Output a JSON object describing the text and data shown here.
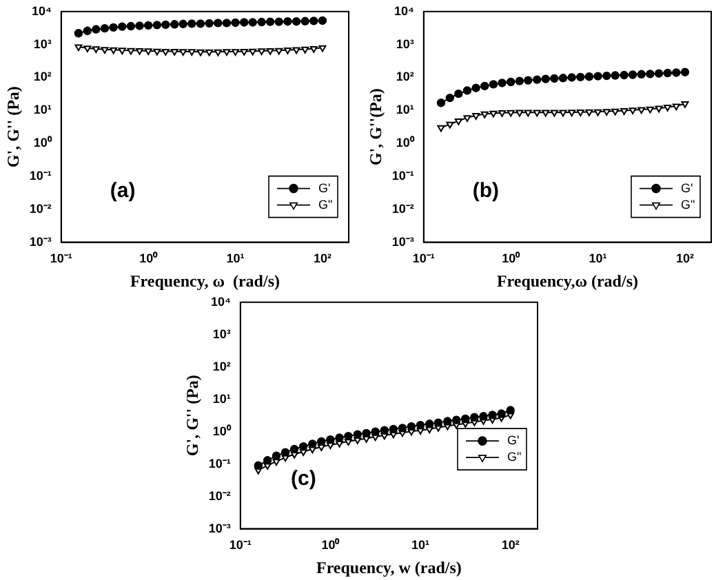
{
  "chart_data": [
    {
      "type": "line",
      "xlabel": "Frequency, ω  (rad/s)",
      "ylabel": "G', G'' (Pa)",
      "annotations": [
        "(a)"
      ],
      "log": "xy",
      "legend": "bottom right",
      "grid": false,
      "line_style": "solid",
      "xlim": [
        0.1,
        200
      ],
      "xticks": [
        {
          "value": 0.1,
          "label": "10⁻¹"
        },
        {
          "value": 1,
          "label": "10⁰"
        },
        {
          "value": 10,
          "label": "10¹"
        },
        {
          "value": 100,
          "label": "10²"
        }
      ],
      "ylim": [
        0.001,
        10000
      ],
      "yticks": [
        {
          "value": 0.001,
          "label": "10⁻³"
        },
        {
          "value": 0.01,
          "label": "10⁻²"
        },
        {
          "value": 0.1,
          "label": "10⁻¹"
        },
        {
          "value": 1,
          "label": "10⁰"
        },
        {
          "value": 10,
          "label": "10¹"
        },
        {
          "value": 100,
          "label": "10²"
        },
        {
          "value": 1000,
          "label": "10³"
        },
        {
          "value": 10000,
          "label": "10⁴"
        }
      ],
      "x": [
        0.158,
        0.2,
        0.251,
        0.316,
        0.398,
        0.501,
        0.631,
        0.794,
        1,
        1.26,
        1.58,
        2,
        2.51,
        3.16,
        3.98,
        5.01,
        6.31,
        7.94,
        10,
        12.6,
        15.8,
        20,
        25.1,
        31.6,
        39.8,
        50.1,
        63.1,
        79.4,
        100
      ],
      "series": [
        {
          "name": "G'",
          "color": "#000000",
          "marker": "circle",
          "values": [
            2200,
            2600,
            2900,
            3100,
            3300,
            3500,
            3600,
            3700,
            3800,
            3900,
            4000,
            4100,
            4200,
            4300,
            4300,
            4400,
            4500,
            4500,
            4600,
            4700,
            4700,
            4800,
            4900,
            4900,
            5000,
            5000,
            5100,
            5200,
            5300
          ]
        },
        {
          "name": "G\"",
          "color": "#000000",
          "marker": "triangle",
          "values": [
            850,
            780,
            740,
            710,
            690,
            670,
            660,
            650,
            640,
            630,
            620,
            620,
            610,
            610,
            600,
            600,
            600,
            610,
            610,
            620,
            630,
            640,
            650,
            660,
            680,
            700,
            720,
            750,
            800
          ]
        }
      ]
    },
    {
      "type": "line",
      "xlabel": "Frequency,ω (rad/s)",
      "ylabel": "G', G''(Pa)",
      "annotations": [
        "(b)"
      ],
      "log": "xy",
      "legend": "bottom right",
      "grid": false,
      "line_style": "solid",
      "xlim": [
        0.1,
        200
      ],
      "xticks": [
        {
          "value": 0.1,
          "label": "10⁻¹"
        },
        {
          "value": 1,
          "label": "10⁰"
        },
        {
          "value": 10,
          "label": "10¹"
        },
        {
          "value": 100,
          "label": "10²"
        }
      ],
      "ylim": [
        0.001,
        10000
      ],
      "yticks": [
        {
          "value": 0.001,
          "label": "10⁻³"
        },
        {
          "value": 0.01,
          "label": "10⁻²"
        },
        {
          "value": 0.1,
          "label": "10⁻¹"
        },
        {
          "value": 1,
          "label": "10⁰"
        },
        {
          "value": 10,
          "label": "10¹"
        },
        {
          "value": 100,
          "label": "10²"
        },
        {
          "value": 1000,
          "label": "10³"
        },
        {
          "value": 10000,
          "label": "10⁴"
        }
      ],
      "x": [
        0.158,
        0.2,
        0.251,
        0.316,
        0.398,
        0.501,
        0.631,
        0.794,
        1,
        1.26,
        1.58,
        2,
        2.51,
        3.16,
        3.98,
        5.01,
        6.31,
        7.94,
        10,
        12.6,
        15.8,
        20,
        25.1,
        31.6,
        39.8,
        50.1,
        63.1,
        79.4,
        100
      ],
      "series": [
        {
          "name": "G'",
          "color": "#000000",
          "marker": "circle",
          "values": [
            17,
            24,
            32,
            40,
            48,
            55,
            62,
            68,
            73,
            78,
            82,
            86,
            90,
            93,
            96,
            100,
            103,
            106,
            109,
            112,
            115,
            118,
            121,
            125,
            128,
            132,
            136,
            140,
            145
          ]
        },
        {
          "name": "G\"",
          "color": "#000000",
          "marker": "triangle",
          "values": [
            3,
            3.8,
            4.8,
            6,
            7,
            7.8,
            8.2,
            8.5,
            8.6,
            8.7,
            8.7,
            8.7,
            8.7,
            8.7,
            8.7,
            8.8,
            8.9,
            9,
            9.1,
            9.3,
            9.5,
            9.8,
            10.2,
            10.6,
            11,
            11.6,
            12.5,
            13.5,
            16
          ]
        }
      ]
    },
    {
      "type": "line",
      "xlabel": "Frequency, w (rad/s)",
      "ylabel": "G', G'' (Pa)",
      "annotations": [
        "(c)"
      ],
      "log": "xy",
      "legend": "right",
      "grid": false,
      "line_style": "solid",
      "xlim": [
        0.1,
        200
      ],
      "xticks": [
        {
          "value": 0.1,
          "label": "10⁻¹"
        },
        {
          "value": 1,
          "label": "10⁰"
        },
        {
          "value": 10,
          "label": "10¹"
        },
        {
          "value": 100,
          "label": "10²"
        }
      ],
      "ylim": [
        0.001,
        10000
      ],
      "yticks": [
        {
          "value": 0.001,
          "label": "10⁻³"
        },
        {
          "value": 0.01,
          "label": "10⁻²"
        },
        {
          "value": 0.1,
          "label": "10⁻¹"
        },
        {
          "value": 1,
          "label": "10⁰"
        },
        {
          "value": 10,
          "label": "10¹"
        },
        {
          "value": 100,
          "label": "10²"
        },
        {
          "value": 1000,
          "label": "10³"
        },
        {
          "value": 10000,
          "label": "10⁴"
        }
      ],
      "x": [
        0.158,
        0.2,
        0.251,
        0.316,
        0.398,
        0.501,
        0.631,
        0.794,
        1,
        1.26,
        1.58,
        2,
        2.51,
        3.16,
        3.98,
        5.01,
        6.31,
        7.94,
        10,
        12.6,
        15.8,
        20,
        25.1,
        31.6,
        39.8,
        50.1,
        63.1,
        79.4,
        100
      ],
      "series": [
        {
          "name": "G'",
          "color": "#000000",
          "marker": "circle",
          "values": [
            0.09,
            0.13,
            0.18,
            0.23,
            0.29,
            0.35,
            0.42,
            0.5,
            0.57,
            0.65,
            0.73,
            0.82,
            0.9,
            1,
            1.1,
            1.2,
            1.3,
            1.45,
            1.6,
            1.75,
            1.9,
            2.1,
            2.3,
            2.5,
            2.8,
            3,
            3.3,
            3.6,
            4.6
          ]
        },
        {
          "name": "G\"",
          "color": "#000000",
          "marker": "triangle",
          "values": [
            0.065,
            0.09,
            0.12,
            0.16,
            0.2,
            0.24,
            0.29,
            0.34,
            0.39,
            0.44,
            0.5,
            0.56,
            0.62,
            0.7,
            0.77,
            0.85,
            0.93,
            1.02,
            1.1,
            1.2,
            1.35,
            1.5,
            1.65,
            1.8,
            2,
            2.2,
            2.4,
            2.7,
            3.3
          ]
        }
      ]
    }
  ]
}
